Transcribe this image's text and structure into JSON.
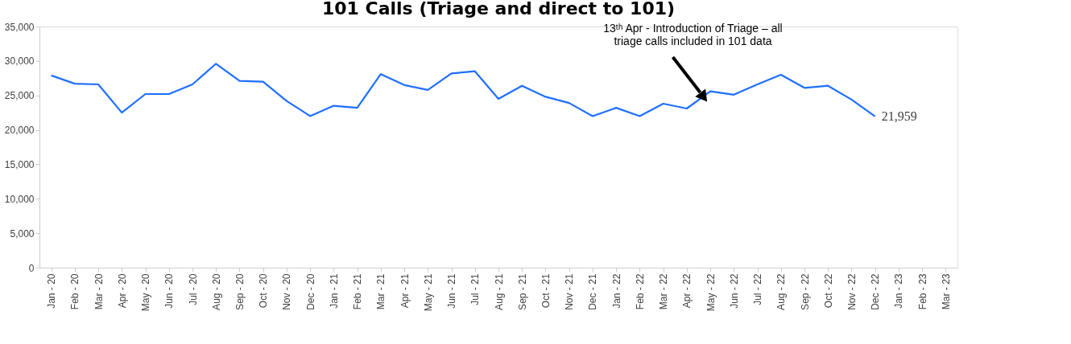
{
  "chart_data": {
    "type": "line",
    "title": "101 Calls (Triage and direct to 101)",
    "categories": [
      "Jan - 20",
      "Feb - 20",
      "Mar - 20",
      "Apr - 20",
      "May - 20",
      "Jun - 20",
      "Jul - 20",
      "Aug - 20",
      "Sep - 20",
      "Oct - 20",
      "Nov - 20",
      "Dec - 20",
      "Jan - 21",
      "Feb - 21",
      "Mar - 21",
      "Apr - 21",
      "May - 21",
      "Jun - 21",
      "Jul - 21",
      "Aug - 21",
      "Sep - 21",
      "Oct - 21",
      "Nov - 21",
      "Dec - 21",
      "Jan - 22",
      "Feb - 22",
      "Mar - 22",
      "Apr - 22",
      "May - 22",
      "Jun - 22",
      "Jul - 22",
      "Aug - 22",
      "Sep - 22",
      "Oct - 22",
      "Nov - 22",
      "Dec - 22",
      "Jan - 23",
      "Feb - 23",
      "Mar - 23"
    ],
    "series": [
      {
        "color": "#1f6fff",
        "values": [
          27900,
          26700,
          26600,
          22500,
          25200,
          25200,
          26600,
          29600,
          27100,
          27000,
          24200,
          22000,
          23500,
          23200,
          28100,
          26500,
          25800,
          28200,
          28500,
          24500,
          26400,
          24800,
          23900,
          22000,
          23200,
          22000,
          23800,
          23100,
          25600,
          25100,
          26600,
          28000,
          26100,
          26400,
          24400,
          21959,
          null,
          null,
          null
        ],
        "value_labels": [
          null,
          null,
          null,
          null,
          null,
          null,
          null,
          null,
          null,
          null,
          null,
          null,
          null,
          null,
          null,
          null,
          null,
          null,
          null,
          null,
          null,
          null,
          null,
          null,
          null,
          null,
          null,
          null,
          null,
          null,
          null,
          null,
          null,
          null,
          null,
          "21,959",
          null,
          null,
          null
        ]
      }
    ],
    "ylim": [
      0,
      35000
    ],
    "yticks": [
      {
        "value": 0,
        "label": "0"
      },
      {
        "value": 5000,
        "label": "5,000"
      },
      {
        "value": 10000,
        "label": "10,000"
      },
      {
        "value": 15000,
        "label": "15,000"
      },
      {
        "value": 20000,
        "label": "20,000"
      },
      {
        "value": 25000,
        "label": "25,000"
      },
      {
        "value": 30000,
        "label": "30,000"
      },
      {
        "value": 35000,
        "label": "35,000"
      }
    ],
    "annotations": [
      "13ᵗʰ Apr - Introduction  of Triage – all\ntriage calls included  in 101 data"
    ],
    "grid": false,
    "marker": "none",
    "line_style": "solid"
  }
}
